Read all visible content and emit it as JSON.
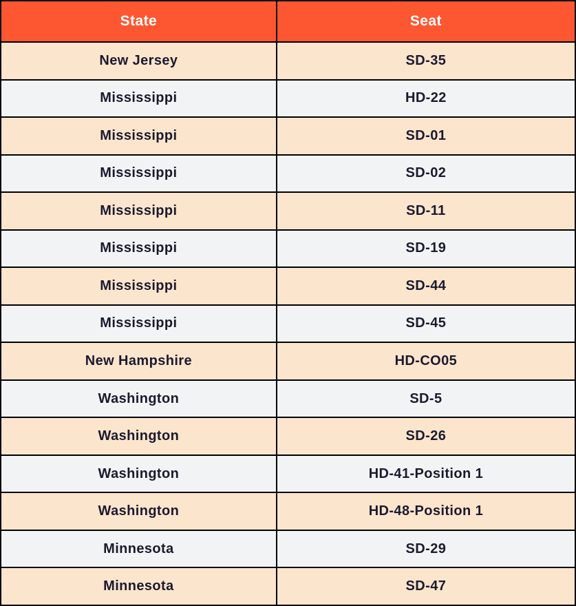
{
  "chart_data": {
    "type": "table",
    "title": "",
    "columns": [
      "State",
      "Seat"
    ],
    "rows": [
      [
        "New Jersey",
        "SD-35"
      ],
      [
        "Mississippi",
        "HD-22"
      ],
      [
        "Mississippi",
        "SD-01"
      ],
      [
        "Mississippi",
        "SD-02"
      ],
      [
        "Mississippi",
        "SD-11"
      ],
      [
        "Mississippi",
        "SD-19"
      ],
      [
        "Mississippi",
        "SD-44"
      ],
      [
        "Mississippi",
        "SD-45"
      ],
      [
        "New Hampshire",
        "HD-CO05"
      ],
      [
        "Washington",
        "SD-5"
      ],
      [
        "Washington",
        "SD-26"
      ],
      [
        "Washington",
        "HD-41-Position 1"
      ],
      [
        "Washington",
        "HD-48-Position 1"
      ],
      [
        "Minnesota",
        "SD-29"
      ],
      [
        "Minnesota",
        "SD-47"
      ]
    ]
  },
  "colors": {
    "header_bg": "#FD5732",
    "header_text": "#FFFFFF",
    "row_odd_bg": "#FCE5CD",
    "row_even_bg": "#F2F3F4",
    "cell_text": "#1A1A2E",
    "border": "#000000"
  }
}
